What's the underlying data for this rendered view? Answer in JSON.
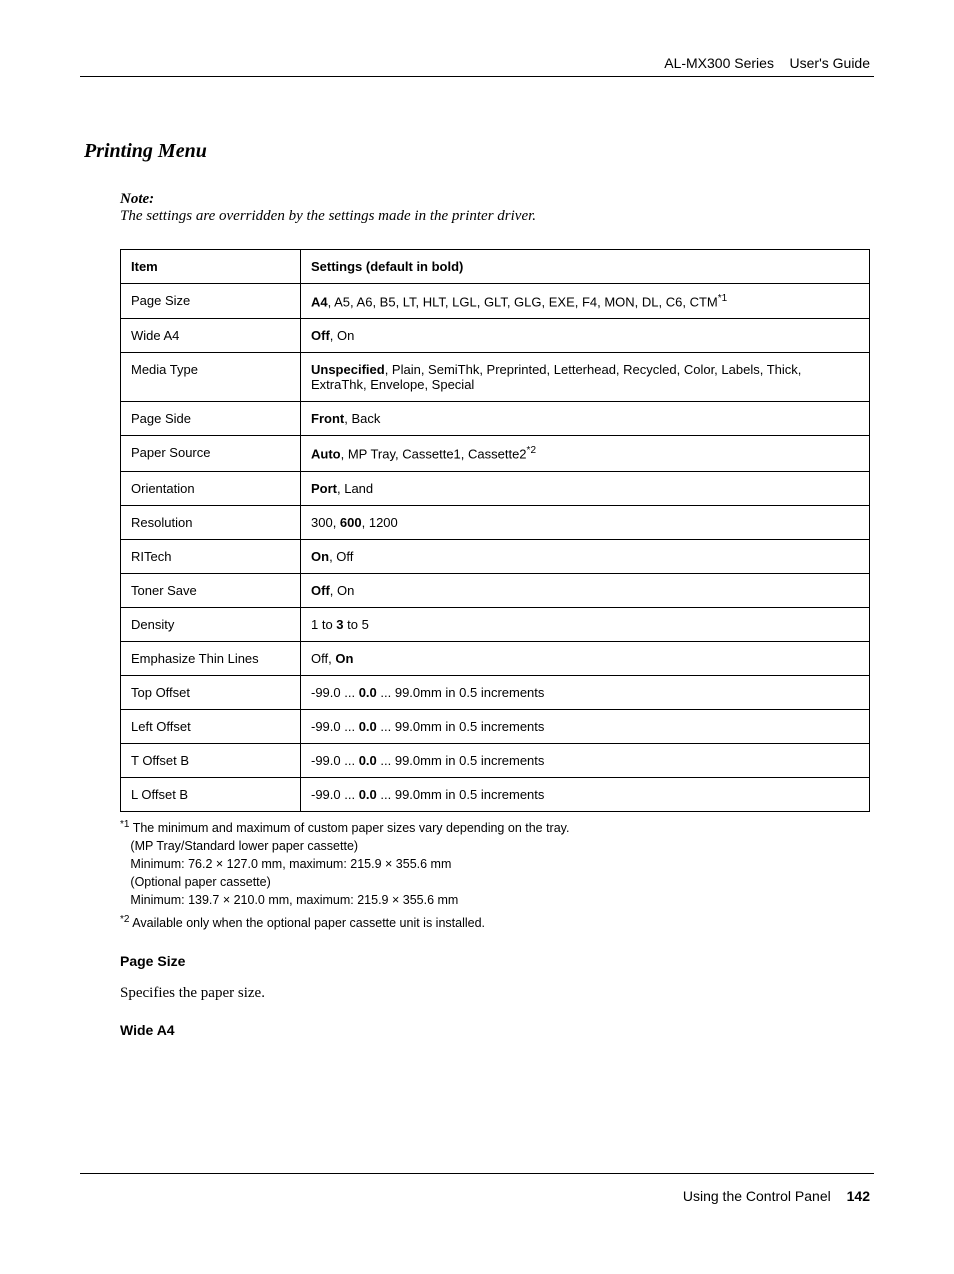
{
  "header": {
    "product": "AL-MX300 Series",
    "guide": "User's Guide"
  },
  "section": {
    "title": "Printing Menu",
    "note_label": "Note:",
    "note_text": "The settings are overridden by the settings made in the printer driver."
  },
  "table": {
    "header_item": "Item",
    "header_settings": "Settings (default in bold)",
    "rows": [
      {
        "item": "Page Size",
        "settings_html": "<b>A4</b>, A5, A6, B5, LT, HLT, LGL, GLT, GLG, EXE, F4, MON, DL, C6, CTM<span class='sup'>*1</span>"
      },
      {
        "item": "Wide A4",
        "settings_html": "<b>Off</b>, On"
      },
      {
        "item": "Media Type",
        "settings_html": "<b>Unspecified</b>, Plain, SemiThk, Preprinted, Letterhead, Recycled, Color, Labels, Thick, ExtraThk, Envelope, Special"
      },
      {
        "item": "Page Side",
        "settings_html": "<b>Front</b>, Back"
      },
      {
        "item": "Paper Source",
        "settings_html": "<b>Auto</b>, MP Tray, Cassette1, Cassette2<span class='sup'>*2</span>"
      },
      {
        "item": "Orientation",
        "settings_html": "<b>Port</b>, Land"
      },
      {
        "item": "Resolution",
        "settings_html": "300, <b>600</b>, 1200"
      },
      {
        "item": "RITech",
        "settings_html": "<b>On</b>, Off"
      },
      {
        "item": "Toner Save",
        "settings_html": "<b>Off</b>, On"
      },
      {
        "item": "Density",
        "settings_html": "1 to <b>3</b> to 5"
      },
      {
        "item": "Emphasize Thin Lines",
        "settings_html": "Off, <b>On</b>"
      },
      {
        "item": "Top Offset",
        "settings_html": "-99.0 ... <b>0.0</b> ... 99.0mm in 0.5 increments"
      },
      {
        "item": "Left Offset",
        "settings_html": "-99.0 ... <b>0.0</b> ... 99.0mm in 0.5 increments"
      },
      {
        "item": "T Offset B",
        "settings_html": "-99.0 ... <b>0.0</b> ... 99.0mm in 0.5 increments"
      },
      {
        "item": "L Offset B",
        "settings_html": "-99.0 ... <b>0.0</b> ... 99.0mm in 0.5 increments"
      }
    ]
  },
  "footnotes": [
    {
      "marker": "*1",
      "lines": [
        "The minimum and maximum of custom paper sizes vary depending on the tray.",
        "(MP Tray/Standard lower paper cassette)",
        "Minimum: 76.2 × 127.0 mm, maximum: 215.9 × 355.6 mm",
        "(Optional paper cassette)",
        "Minimum: 139.7 × 210.0 mm, maximum: 215.9 × 355.6 mm"
      ]
    },
    {
      "marker": "*2",
      "lines": [
        "Available only when the optional paper cassette unit is installed."
      ]
    }
  ],
  "subsections": {
    "page_size_title": "Page Size",
    "page_size_text": "Specifies the paper size.",
    "wide_a4_title": "Wide A4"
  },
  "footer": {
    "chapter": "Using the Control Panel",
    "page": "142"
  }
}
